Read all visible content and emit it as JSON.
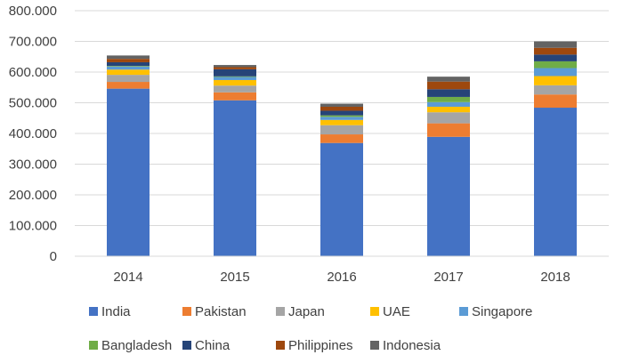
{
  "chart_data": {
    "type": "bar",
    "stacked": true,
    "categories": [
      "2014",
      "2015",
      "2016",
      "2017",
      "2018"
    ],
    "ylim": [
      0,
      800
    ],
    "y_ticks": [
      "0",
      "100.000",
      "200.000",
      "300.000",
      "400.000",
      "500.000",
      "600.000",
      "700.000",
      "800.000"
    ],
    "grid": true,
    "legend_position": "bottom",
    "series": [
      {
        "name": "India",
        "color": "#4472C4",
        "values": [
          546,
          508,
          369,
          389,
          484
        ]
      },
      {
        "name": "Pakistan",
        "color": "#ED7D31",
        "values": [
          22,
          26,
          28,
          44,
          43
        ]
      },
      {
        "name": "Japan",
        "color": "#A5A5A5",
        "values": [
          23,
          22,
          30,
          36,
          30
        ]
      },
      {
        "name": "UAE",
        "color": "#FFC000",
        "values": [
          17,
          18,
          17,
          18,
          30
        ]
      },
      {
        "name": "Singapore",
        "color": "#5B9BD5",
        "values": [
          10,
          10,
          10,
          15,
          26
        ]
      },
      {
        "name": "Bangladesh",
        "color": "#70AD47",
        "values": [
          2,
          2,
          5,
          17,
          22
        ]
      },
      {
        "name": "China",
        "color": "#264478",
        "values": [
          12,
          23,
          15,
          25,
          22
        ]
      },
      {
        "name": "Philippines",
        "color": "#9E480E",
        "values": [
          11,
          7,
          13,
          25,
          22
        ]
      },
      {
        "name": "Indonesia",
        "color": "#636363",
        "values": [
          11,
          7,
          10,
          16,
          21
        ]
      }
    ]
  }
}
